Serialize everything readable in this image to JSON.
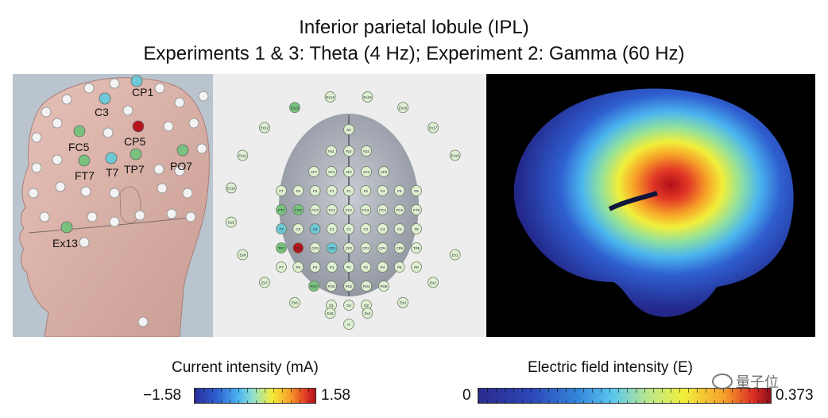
{
  "title_line1": "Inferior parietal lobule (IPL)",
  "title_line2": "Experiments 1 & 3: Theta (4 Hz); Experiment 2: Gamma (60 Hz)",
  "head_panel": {
    "electrodes": [
      {
        "label": "CP1",
        "color": "#6ec9d6"
      },
      {
        "label": "C3",
        "color": "#6ec9d6"
      },
      {
        "label": "CP5",
        "color": "#b8141c"
      },
      {
        "label": "FC5",
        "color": "#79c27e"
      },
      {
        "label": "T7",
        "color": "#6ec9d6"
      },
      {
        "label": "TP7",
        "color": "#79c27e"
      },
      {
        "label": "FT7",
        "color": "#79c27e"
      },
      {
        "label": "PO7",
        "color": "#79c27e"
      },
      {
        "label": "Ex13",
        "color": "#79c27e"
      }
    ]
  },
  "topo_panel": {
    "electrodes": [
      "Nz",
      "Fp1",
      "Fpz",
      "Fp2",
      "AF7",
      "AF3",
      "AFz",
      "AF4",
      "AF8",
      "F7",
      "F5",
      "F3",
      "F1",
      "Fz",
      "F2",
      "F4",
      "F6",
      "F8",
      "FT7",
      "FC5",
      "FC3",
      "FC1",
      "FCz",
      "FC2",
      "FC4",
      "FC6",
      "FT8",
      "T7",
      "C5",
      "C3",
      "C1",
      "Cz",
      "C2",
      "C4",
      "C6",
      "T8",
      "TP7",
      "CP5",
      "CP3",
      "CP1",
      "CPz",
      "CP2",
      "CP4",
      "CP6",
      "TP8",
      "P7",
      "P5",
      "P3",
      "P1",
      "Pz",
      "P2",
      "P4",
      "P6",
      "P8",
      "PO7",
      "PO3",
      "POz",
      "PO4",
      "PO8",
      "O1",
      "Oz",
      "O2",
      "Iz",
      "Ex1",
      "Ex2",
      "Ex3",
      "Ex4",
      "Ex5",
      "Ex6",
      "Ex7",
      "Ex8",
      "Ex9",
      "Ex10",
      "Ex11",
      "Ex12",
      "Ex13",
      "Ex14",
      "Ex15",
      "Ex16",
      "Ex17",
      "Ex18"
    ],
    "highlight": {
      "CP5": "#b8141c",
      "C3": "#6ec9d6",
      "CP1": "#6ec9d6",
      "T7": "#6ec9d6",
      "FC5": "#79c27e",
      "FT7": "#79c27e",
      "TP7": "#79c27e",
      "PO7": "#79c27e",
      "Ex13": "#79c27e"
    }
  },
  "colorbar_current": {
    "label": "Current intensity (mA)",
    "min": "−1.58",
    "max": "1.58"
  },
  "colorbar_field": {
    "label": "Electric field intensity (E)",
    "min": "0",
    "max": "0.373"
  },
  "watermark": "量子位"
}
